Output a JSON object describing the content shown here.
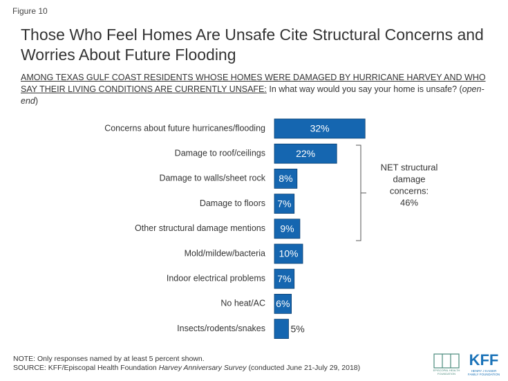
{
  "figure_label": "Figure 10",
  "chart_data": {
    "type": "bar",
    "title": "Those Who Feel Homes Are Unsafe Cite Structural Concerns and Worries About Future Flooding",
    "subtitle_lead": "AMONG TEXAS GULF COAST RESIDENTS WHOSE HOMES WERE DAMAGED BY HURRICANE HARVEY AND WHO SAY THEIR LIVING CONDITIONS ARE CURRENTLY UNSAFE:",
    "subtitle_question": "In what way would you say your home is unsafe? (",
    "subtitle_italic": "open-end",
    "subtitle_close": ")",
    "categories": [
      "Concerns about future hurricanes/flooding",
      "Damage to roof/ceilings",
      "Damage to walls/sheet rock",
      "Damage to floors",
      "Other structural damage mentions",
      "Mold/mildew/bacteria",
      "Indoor electrical problems",
      "No heat/AC",
      "Insects/rodents/snakes"
    ],
    "values": [
      32,
      22,
      8,
      7,
      9,
      10,
      7,
      6,
      5
    ],
    "value_labels": [
      "32%",
      "22%",
      "8%",
      "7%",
      "9%",
      "10%",
      "7%",
      "6%",
      "5%"
    ],
    "color": "#1566b0",
    "annotation": [
      "NET structural",
      "damage",
      "concerns:",
      "46%"
    ]
  },
  "footer": {
    "note": "NOTE: Only responses named by at least 5 percent shown.",
    "source_lead": "SOURCE: KFF/Episcopal Health Foundation",
    "source_italic": "Harvey Anniversary Survey",
    "source_tail": "(conducted June 21-July 29, 2018)"
  },
  "logos": {
    "kff": "KFF",
    "kff_line1": "HENRY J KAISER",
    "kff_line2": "FAMILY FOUNDATION",
    "ehf_line1": "EPISCOPAL HEALTH",
    "ehf_line2": "FOUNDATION"
  }
}
